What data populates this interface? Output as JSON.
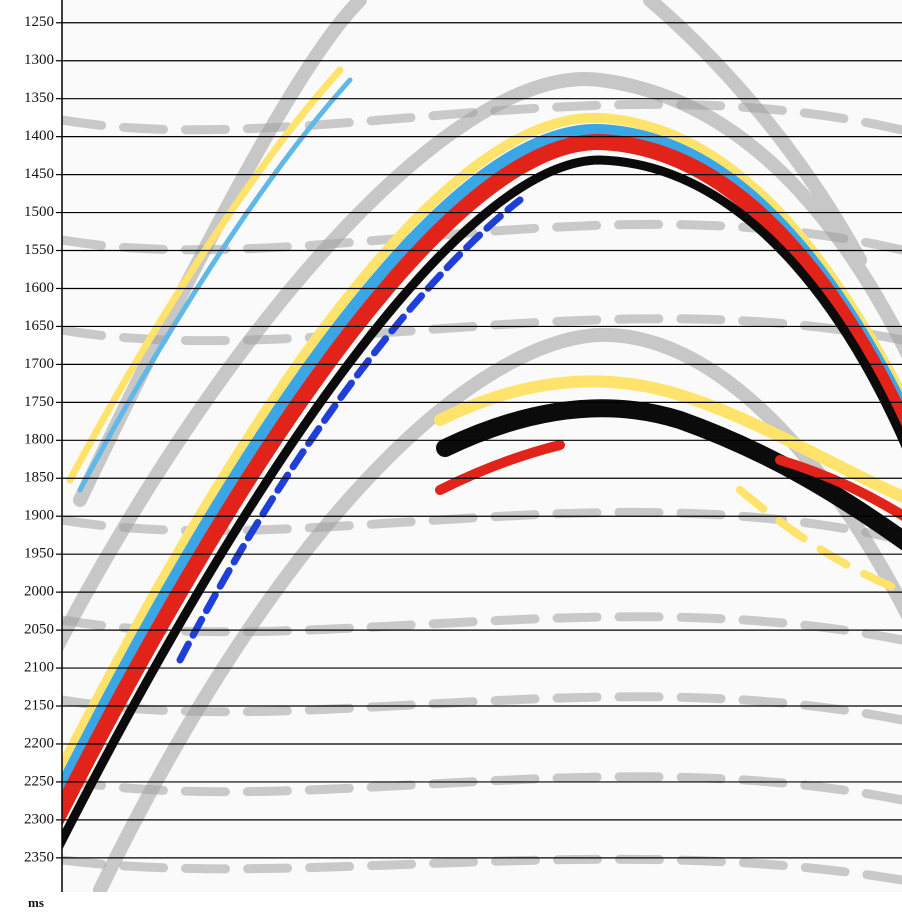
{
  "chart_data": {
    "type": "seismic-section",
    "y_label": "ms",
    "ylim": [
      1220,
      2395
    ],
    "y_inverted": true,
    "yticks": [
      1250,
      1300,
      1350,
      1400,
      1450,
      1500,
      1550,
      1600,
      1650,
      1700,
      1750,
      1800,
      1850,
      1900,
      1950,
      2000,
      2050,
      2100,
      2150,
      2200,
      2250,
      2300,
      2350
    ],
    "grid": true
  }
}
